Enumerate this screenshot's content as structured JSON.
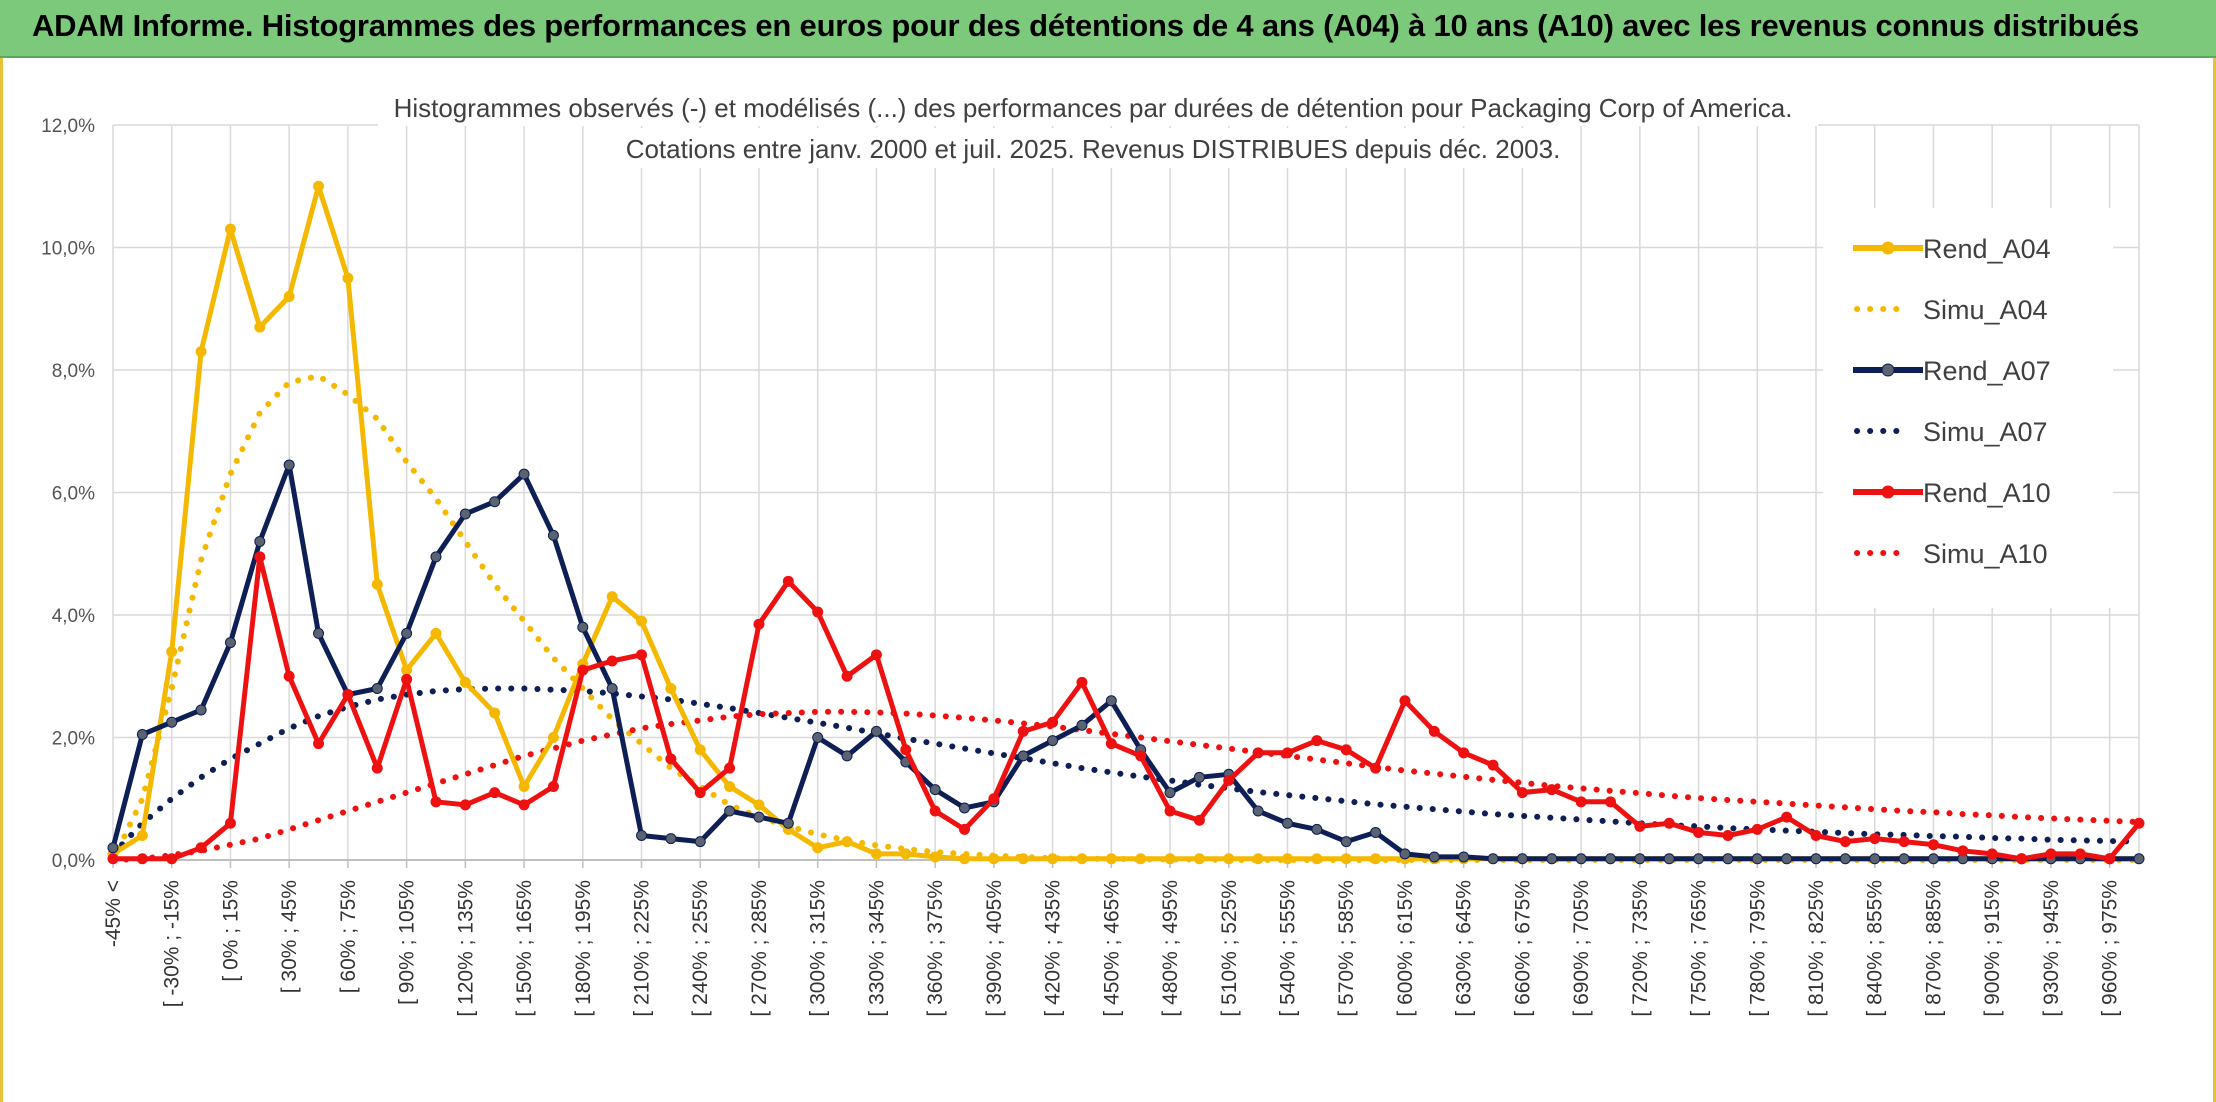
{
  "header": {
    "title": "ADAM Informe. Histogrammes des performances en euros pour des détentions de 4 ans (A04) à 10 ans (A10) avec les revenus connus distribués"
  },
  "chart_data": {
    "type": "line",
    "title": [
      "Histogrammes observés (-) et modélisés (...) des performances par durées de détention pour Packaging Corp of America.",
      "Cotations entre janv. 2000 et juil. 2025. Revenus DISTRIBUES depuis déc. 2003."
    ],
    "xlabel": "",
    "ylabel": "",
    "ylim": [
      0,
      12
    ],
    "y_ticks": [
      "0,0%",
      "2,0%",
      "4,0%",
      "6,0%",
      "8,0%",
      "10,0%",
      "12,0%"
    ],
    "grid": true,
    "legend_position": "right",
    "x_labels": [
      "-45% <",
      "[ -30% ; -15%",
      "[ 0% ; 15%",
      "[ 30% ; 45%",
      "[ 60% ; 75%",
      "[ 90% ; 105%",
      "[ 120% ; 135%",
      "[ 150% ; 165%",
      "[ 180% ; 195%",
      "[ 210% ; 225%",
      "[ 240% ; 255%",
      "[ 270% ; 285%",
      "[ 300% ; 315%",
      "[ 330% ; 345%",
      "[ 360% ; 375%",
      "[ 390% ; 405%",
      "[ 420% ; 435%",
      "[ 450% ; 465%",
      "[ 480% ; 495%",
      "[ 510% ; 525%",
      "[ 540% ; 555%",
      "[ 570% ; 585%",
      "[ 600% ; 615%",
      "[ 630% ; 645%",
      "[ 660% ; 675%",
      "[ 690% ; 705%",
      "[ 720% ; 735%",
      "[ 750% ; 765%",
      "[ 780% ; 795%",
      "[ 810% ; 825%",
      "[ 840% ; 855%",
      "[ 870% ; 885%",
      "[ 900% ; 915%",
      "[ 930% ; 945%",
      "[ 960% ; 975%"
    ],
    "series": [
      {
        "name": "Rend_A04",
        "color": "#f5b800",
        "style": "solid",
        "values": [
          0.1,
          0.4,
          3.4,
          8.3,
          10.3,
          8.7,
          9.2,
          11.0,
          9.5,
          4.5,
          3.1,
          3.7,
          2.9,
          2.4,
          1.2,
          2.0,
          3.2,
          4.3,
          3.9,
          2.8,
          1.8,
          1.2,
          0.9,
          0.5,
          0.2,
          0.3,
          0.1,
          0.1,
          0.05,
          0.02,
          0.02,
          0.02,
          0.02,
          0.02,
          0.02,
          0.02,
          0.02,
          0.02,
          0.02,
          0.02,
          0.02,
          0.02,
          0.02,
          0.02,
          0.02,
          0.02,
          0.02,
          0.02,
          0.02,
          0.02,
          0.02,
          0.02,
          0.02,
          0.02,
          0.02,
          0.02,
          0.02,
          0.02,
          0.02,
          0.02,
          0.02,
          0.02,
          0.02,
          0.02,
          0.02,
          0.02,
          0.02,
          0.02,
          0.02,
          0.02
        ]
      },
      {
        "name": "Simu_A04",
        "color": "#f5b800",
        "style": "dotted",
        "values": [
          0.0,
          1.0,
          2.8,
          4.9,
          6.3,
          7.3,
          7.8,
          7.9,
          7.6,
          7.2,
          6.5,
          5.9,
          5.2,
          4.5,
          3.9,
          3.3,
          2.8,
          2.3,
          1.9,
          1.5,
          1.2,
          0.9,
          0.7,
          0.55,
          0.42,
          0.32,
          0.24,
          0.18,
          0.13,
          0.1,
          0.07,
          0.05,
          0.03,
          0.02,
          0.02,
          0.01,
          0.01,
          0.01,
          0.0,
          0.0,
          0.0,
          0.0,
          0.0,
          0.0,
          0.0,
          0.0,
          0.0,
          0.0,
          0.0,
          0.0,
          0.0,
          0.0,
          0.0,
          0.0,
          0.0,
          0.0,
          0.0,
          0.0,
          0.0,
          0.0,
          0.0,
          0.0,
          0.0,
          0.0,
          0.0,
          0.0,
          0.0,
          0.0,
          0.0,
          0.0
        ]
      },
      {
        "name": "Rend_A07",
        "color": "#0d1f54",
        "style": "solid",
        "values": [
          0.2,
          2.05,
          2.25,
          2.45,
          3.55,
          5.2,
          6.45,
          3.7,
          2.7,
          2.8,
          3.7,
          4.95,
          5.65,
          5.85,
          6.3,
          5.3,
          3.8,
          2.8,
          0.4,
          0.35,
          0.3,
          0.8,
          0.7,
          0.6,
          2.0,
          1.7,
          2.1,
          1.6,
          1.15,
          0.85,
          0.95,
          1.7,
          1.95,
          2.2,
          2.6,
          1.8,
          1.1,
          1.35,
          1.4,
          0.8,
          0.6,
          0.5,
          0.3,
          0.45,
          0.1,
          0.05,
          0.05,
          0.02,
          0.02,
          0.02,
          0.02,
          0.02,
          0.02,
          0.02,
          0.02,
          0.02,
          0.02,
          0.02,
          0.02,
          0.02,
          0.02,
          0.02,
          0.02,
          0.02,
          0.02,
          0.02,
          0.02,
          0.02,
          0.02,
          0.02
        ]
      },
      {
        "name": "Simu_A07",
        "color": "#0d1f54",
        "style": "dotted",
        "values": [
          0.1,
          0.6,
          1.0,
          1.35,
          1.65,
          1.9,
          2.15,
          2.35,
          2.5,
          2.62,
          2.7,
          2.76,
          2.79,
          2.8,
          2.8,
          2.78,
          2.76,
          2.72,
          2.67,
          2.62,
          2.55,
          2.48,
          2.4,
          2.32,
          2.24,
          2.16,
          2.07,
          1.98,
          1.9,
          1.82,
          1.74,
          1.66,
          1.58,
          1.5,
          1.43,
          1.36,
          1.3,
          1.23,
          1.17,
          1.11,
          1.06,
          1.01,
          0.96,
          0.91,
          0.87,
          0.83,
          0.79,
          0.75,
          0.72,
          0.69,
          0.66,
          0.63,
          0.6,
          0.57,
          0.55,
          0.52,
          0.5,
          0.48,
          0.46,
          0.44,
          0.42,
          0.41,
          0.39,
          0.38,
          0.36,
          0.35,
          0.33,
          0.32,
          0.31,
          0.3
        ]
      },
      {
        "name": "Rend_A10",
        "color": "#ee1111",
        "style": "solid",
        "values": [
          0.02,
          0.02,
          0.02,
          0.2,
          0.6,
          4.95,
          3.0,
          1.9,
          2.7,
          1.5,
          2.95,
          0.95,
          0.9,
          1.1,
          0.9,
          1.2,
          3.1,
          3.25,
          3.35,
          1.65,
          1.1,
          1.5,
          3.85,
          4.55,
          4.05,
          3.0,
          3.35,
          1.8,
          0.8,
          0.5,
          1.0,
          2.1,
          2.25,
          2.9,
          1.9,
          1.7,
          0.8,
          0.65,
          1.3,
          1.75,
          1.75,
          1.95,
          1.8,
          1.5,
          2.6,
          2.1,
          1.75,
          1.55,
          1.1,
          1.15,
          0.95,
          0.95,
          0.55,
          0.6,
          0.45,
          0.4,
          0.5,
          0.7,
          0.4,
          0.3,
          0.35,
          0.3,
          0.25,
          0.15,
          0.1,
          0.02,
          0.1,
          0.1,
          0.02,
          0.6
        ]
      },
      {
        "name": "Simu_A10",
        "color": "#ee1111",
        "style": "dotted",
        "values": [
          0.0,
          0.02,
          0.08,
          0.15,
          0.25,
          0.35,
          0.5,
          0.65,
          0.8,
          0.95,
          1.1,
          1.25,
          1.4,
          1.55,
          1.7,
          1.82,
          1.95,
          2.05,
          2.15,
          2.22,
          2.28,
          2.34,
          2.38,
          2.4,
          2.42,
          2.42,
          2.41,
          2.39,
          2.36,
          2.32,
          2.28,
          2.23,
          2.18,
          2.12,
          2.06,
          2.0,
          1.94,
          1.88,
          1.82,
          1.76,
          1.7,
          1.64,
          1.58,
          1.52,
          1.46,
          1.41,
          1.36,
          1.31,
          1.26,
          1.21,
          1.17,
          1.13,
          1.09,
          1.05,
          1.01,
          0.98,
          0.95,
          0.92,
          0.89,
          0.86,
          0.83,
          0.8,
          0.78,
          0.75,
          0.73,
          0.7,
          0.68,
          0.66,
          0.64,
          0.62
        ]
      }
    ]
  }
}
